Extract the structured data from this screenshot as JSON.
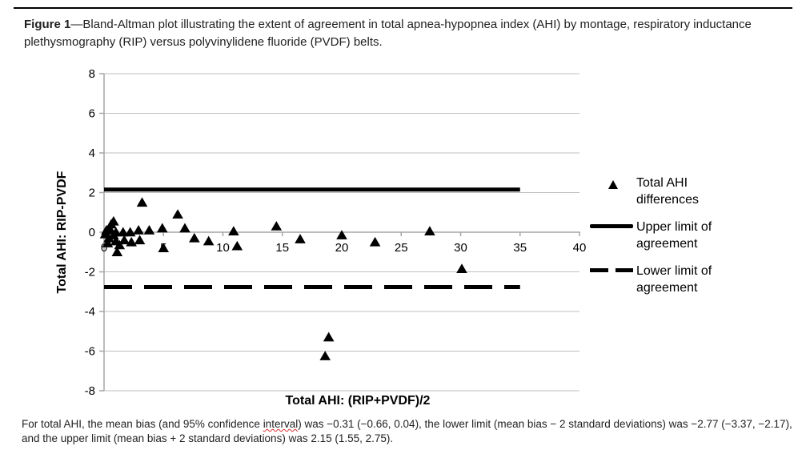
{
  "caption": {
    "label": "Figure 1",
    "text": "—Bland-Altman plot illustrating the extent of agreement in total apnea-hypopnea index (AHI) by montage, respiratory inductance plethysmography (RIP) versus polyvinylidene fluoride (PVDF) belts."
  },
  "footnote": {
    "pre": "For total AHI, the mean bias (and 95% confidence ",
    "misspelled_word": "interval",
    "post": ") was −0.31 (−0.66, 0.04), the lower limit (mean bias − 2 standard deviations) was −2.77 (−3.37, −2.17), and the upper limit (mean bias + 2 standard deviations) was 2.15 (1.55, 2.75)."
  },
  "legend": {
    "items": [
      {
        "label": "Total AHI differences",
        "marker": "triangle"
      },
      {
        "label": "Upper limit of agreement",
        "marker": "solid-line"
      },
      {
        "label": "Lower limit of agreement",
        "marker": "dashed-line"
      }
    ]
  },
  "colors": {
    "marker": "#000000",
    "limit_lines": "#000000",
    "gridline": "#bfbfbf",
    "axis": "#a6a6a6",
    "text": "#000000",
    "spellcheck_underline": "#e03131"
  },
  "chart_data": {
    "type": "scatter",
    "title": "",
    "xlabel": "Total AHI: (RIP+PVDF)/2",
    "ylabel": "Total AHI: RIP-PVDF",
    "xlim": [
      0,
      40
    ],
    "ylim": [
      -8,
      8
    ],
    "x_ticks": [
      0,
      5,
      10,
      15,
      20,
      25,
      30,
      35,
      40
    ],
    "y_ticks": [
      8,
      6,
      4,
      2,
      0,
      -2,
      -4,
      -6,
      -8
    ],
    "grid": "horizontal",
    "legend_position": "right",
    "series": [
      {
        "name": "Total AHI differences",
        "type": "scatter",
        "marker": "triangle",
        "color": "#000000",
        "points": [
          [
            0.1,
            -0.1
          ],
          [
            0.2,
            0.1
          ],
          [
            0.3,
            -0.55
          ],
          [
            0.4,
            -0.3
          ],
          [
            0.5,
            0.15
          ],
          [
            0.6,
            0.4
          ],
          [
            0.8,
            0.55
          ],
          [
            0.8,
            -0.15
          ],
          [
            1.0,
            0.0
          ],
          [
            1.0,
            -0.45
          ],
          [
            1.1,
            -1.0
          ],
          [
            1.3,
            -0.65
          ],
          [
            1.6,
            0.0
          ],
          [
            1.7,
            -0.4
          ],
          [
            2.2,
            0.0
          ],
          [
            2.3,
            -0.5
          ],
          [
            2.9,
            0.1
          ],
          [
            3.0,
            -0.4
          ],
          [
            3.2,
            1.5
          ],
          [
            3.8,
            0.1
          ],
          [
            4.9,
            0.2
          ],
          [
            5.0,
            -0.8
          ],
          [
            6.2,
            0.9
          ],
          [
            6.8,
            0.2
          ],
          [
            7.6,
            -0.3
          ],
          [
            8.8,
            -0.45
          ],
          [
            10.9,
            0.05
          ],
          [
            11.2,
            -0.7
          ],
          [
            14.5,
            0.3
          ],
          [
            16.5,
            -0.35
          ],
          [
            18.9,
            -5.3
          ],
          [
            18.6,
            -6.25
          ],
          [
            20.0,
            -0.15
          ],
          [
            22.8,
            -0.5
          ],
          [
            27.4,
            0.05
          ],
          [
            30.1,
            -1.85
          ]
        ]
      },
      {
        "name": "Upper limit of agreement",
        "type": "hline",
        "y": 2.15,
        "x_range": [
          0,
          35
        ],
        "style": "solid",
        "color": "#000000"
      },
      {
        "name": "Lower limit of agreement",
        "type": "hline",
        "y": -2.77,
        "x_range": [
          0,
          35
        ],
        "style": "dashed",
        "color": "#000000"
      }
    ],
    "stats": {
      "mean_bias": -0.31,
      "mean_bias_ci": [
        -0.66,
        0.04
      ],
      "lower_limit": -2.77,
      "lower_limit_ci": [
        -3.37,
        -2.17
      ],
      "upper_limit": 2.15,
      "upper_limit_ci": [
        1.55,
        2.75
      ]
    }
  }
}
